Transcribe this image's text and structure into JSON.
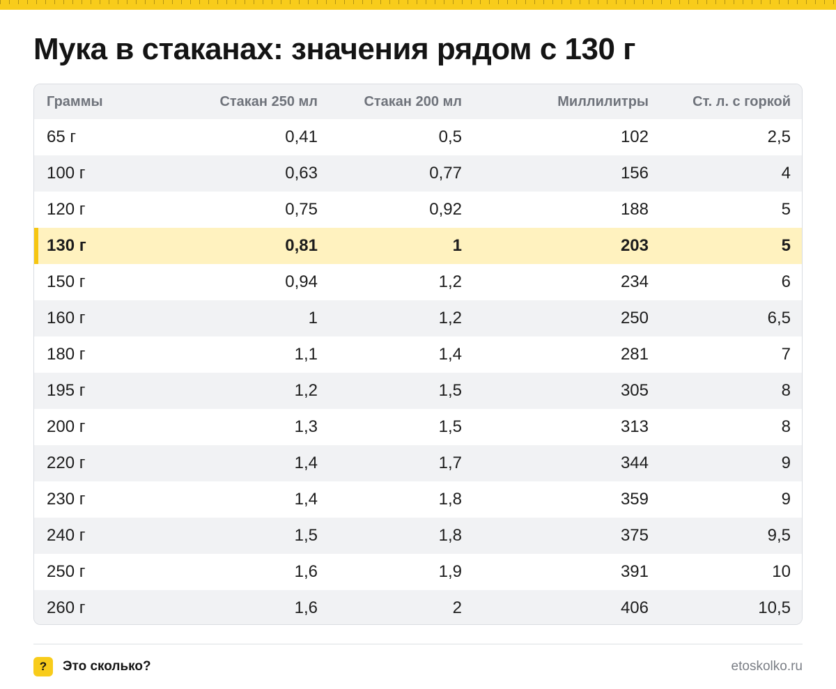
{
  "title": "Мука в стаканах: значения рядом с 130 г",
  "table": {
    "headers": [
      "Граммы",
      "Стакан 250 мл",
      "Стакан 200 мл",
      "Миллилитры",
      "Ст. л. с горкой"
    ],
    "highlight_row": 3,
    "rows": [
      [
        "65 г",
        "0,41",
        "0,5",
        "102",
        "2,5"
      ],
      [
        "100 г",
        "0,63",
        "0,77",
        "156",
        "4"
      ],
      [
        "120 г",
        "0,75",
        "0,92",
        "188",
        "5"
      ],
      [
        "130 г",
        "0,81",
        "1",
        "203",
        "5"
      ],
      [
        "150 г",
        "0,94",
        "1,2",
        "234",
        "6"
      ],
      [
        "160 г",
        "1",
        "1,2",
        "250",
        "6,5"
      ],
      [
        "180 г",
        "1,1",
        "1,4",
        "281",
        "7"
      ],
      [
        "195 г",
        "1,2",
        "1,5",
        "305",
        "8"
      ],
      [
        "200 г",
        "1,3",
        "1,5",
        "313",
        "8"
      ],
      [
        "220 г",
        "1,4",
        "1,7",
        "344",
        "9"
      ],
      [
        "230 г",
        "1,4",
        "1,8",
        "359",
        "9"
      ],
      [
        "240 г",
        "1,5",
        "1,8",
        "375",
        "9,5"
      ],
      [
        "250 г",
        "1,6",
        "1,9",
        "391",
        "10"
      ],
      [
        "260 г",
        "1,6",
        "2",
        "406",
        "10,5"
      ]
    ]
  },
  "footer": {
    "badge": "?",
    "brand": "Это сколько?",
    "site": "etoskolko.ru"
  },
  "colors": {
    "accent": "#f8cc1b",
    "highlight_row": "#fff2bf",
    "stripe": "#f1f2f4"
  },
  "icons": {
    "badge": "question-mark-icon"
  }
}
